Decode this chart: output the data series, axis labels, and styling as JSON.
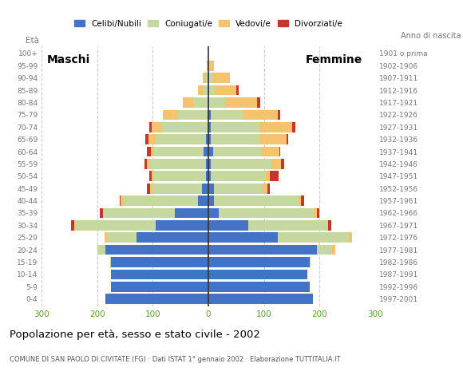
{
  "age_groups": [
    "0-4",
    "5-9",
    "10-14",
    "15-19",
    "20-24",
    "25-29",
    "30-34",
    "35-39",
    "40-44",
    "45-49",
    "50-54",
    "55-59",
    "60-64",
    "65-69",
    "70-74",
    "75-79",
    "80-84",
    "85-89",
    "90-94",
    "95-99",
    "100+"
  ],
  "birth_years": [
    "1997-2001",
    "1992-1996",
    "1987-1991",
    "1982-1986",
    "1977-1981",
    "1972-1976",
    "1967-1971",
    "1962-1966",
    "1957-1961",
    "1952-1956",
    "1947-1951",
    "1942-1946",
    "1937-1941",
    "1932-1936",
    "1927-1931",
    "1922-1926",
    "1917-1921",
    "1912-1916",
    "1907-1911",
    "1902-1906",
    "1901 o prima"
  ],
  "males": {
    "celibi": [
      185,
      175,
      175,
      175,
      185,
      130,
      95,
      60,
      18,
      12,
      5,
      5,
      8,
      5,
      2,
      2,
      0,
      0,
      0,
      0,
      0
    ],
    "coniugati": [
      0,
      0,
      0,
      2,
      15,
      52,
      145,
      128,
      135,
      88,
      92,
      100,
      90,
      90,
      82,
      52,
      28,
      10,
      5,
      0,
      0
    ],
    "vedovi": [
      0,
      0,
      0,
      0,
      0,
      5,
      2,
      2,
      5,
      5,
      5,
      5,
      5,
      13,
      18,
      28,
      18,
      8,
      5,
      3,
      0
    ],
    "divorziati": [
      0,
      0,
      0,
      0,
      0,
      0,
      5,
      5,
      2,
      5,
      5,
      5,
      8,
      5,
      5,
      0,
      0,
      0,
      0,
      0,
      0
    ]
  },
  "females": {
    "nubili": [
      188,
      182,
      178,
      182,
      195,
      125,
      72,
      18,
      10,
      10,
      5,
      5,
      8,
      5,
      5,
      5,
      2,
      2,
      2,
      0,
      0
    ],
    "coniugate": [
      0,
      0,
      0,
      2,
      28,
      128,
      142,
      172,
      152,
      88,
      98,
      108,
      88,
      88,
      88,
      58,
      28,
      10,
      5,
      0,
      0
    ],
    "vedove": [
      0,
      0,
      0,
      0,
      5,
      5,
      2,
      5,
      5,
      8,
      8,
      18,
      32,
      48,
      58,
      62,
      58,
      38,
      32,
      10,
      0
    ],
    "divorziate": [
      0,
      0,
      0,
      0,
      0,
      0,
      5,
      5,
      5,
      5,
      15,
      5,
      2,
      2,
      5,
      5,
      5,
      5,
      0,
      0,
      0
    ]
  },
  "colors": {
    "celibi_nubili": "#4472c4",
    "coniugati": "#c5d8a0",
    "vedovi": "#f5c36e",
    "divorziati": "#c0392b"
  },
  "title": "Popolazione per età, sesso e stato civile - 2002",
  "subtitle": "COMUNE DI SAN PAOLO DI CIVITATE (FG) · Dati ISTAT 1° gennaio 2002 · Elaborazione TUTTITALIA.IT",
  "label_maschi": "Maschi",
  "label_femmine": "Femmine",
  "ylabel_left": "Età",
  "ylabel_right": "Anno di nascita",
  "legend_labels": [
    "Celibi/Nubili",
    "Coniugati/e",
    "Vedovi/e",
    "Divorziati/e"
  ],
  "xlim": 300,
  "xtick_vals": [
    -300,
    -200,
    -100,
    0,
    100,
    200,
    300
  ],
  "xticklabels": [
    "300",
    "200",
    "100",
    "0",
    "100",
    "200",
    "300"
  ],
  "background_color": "#ffffff",
  "grid_color": "#cccccc",
  "tick_color_x": "#5a9e32",
  "tick_color_y": "#777777"
}
